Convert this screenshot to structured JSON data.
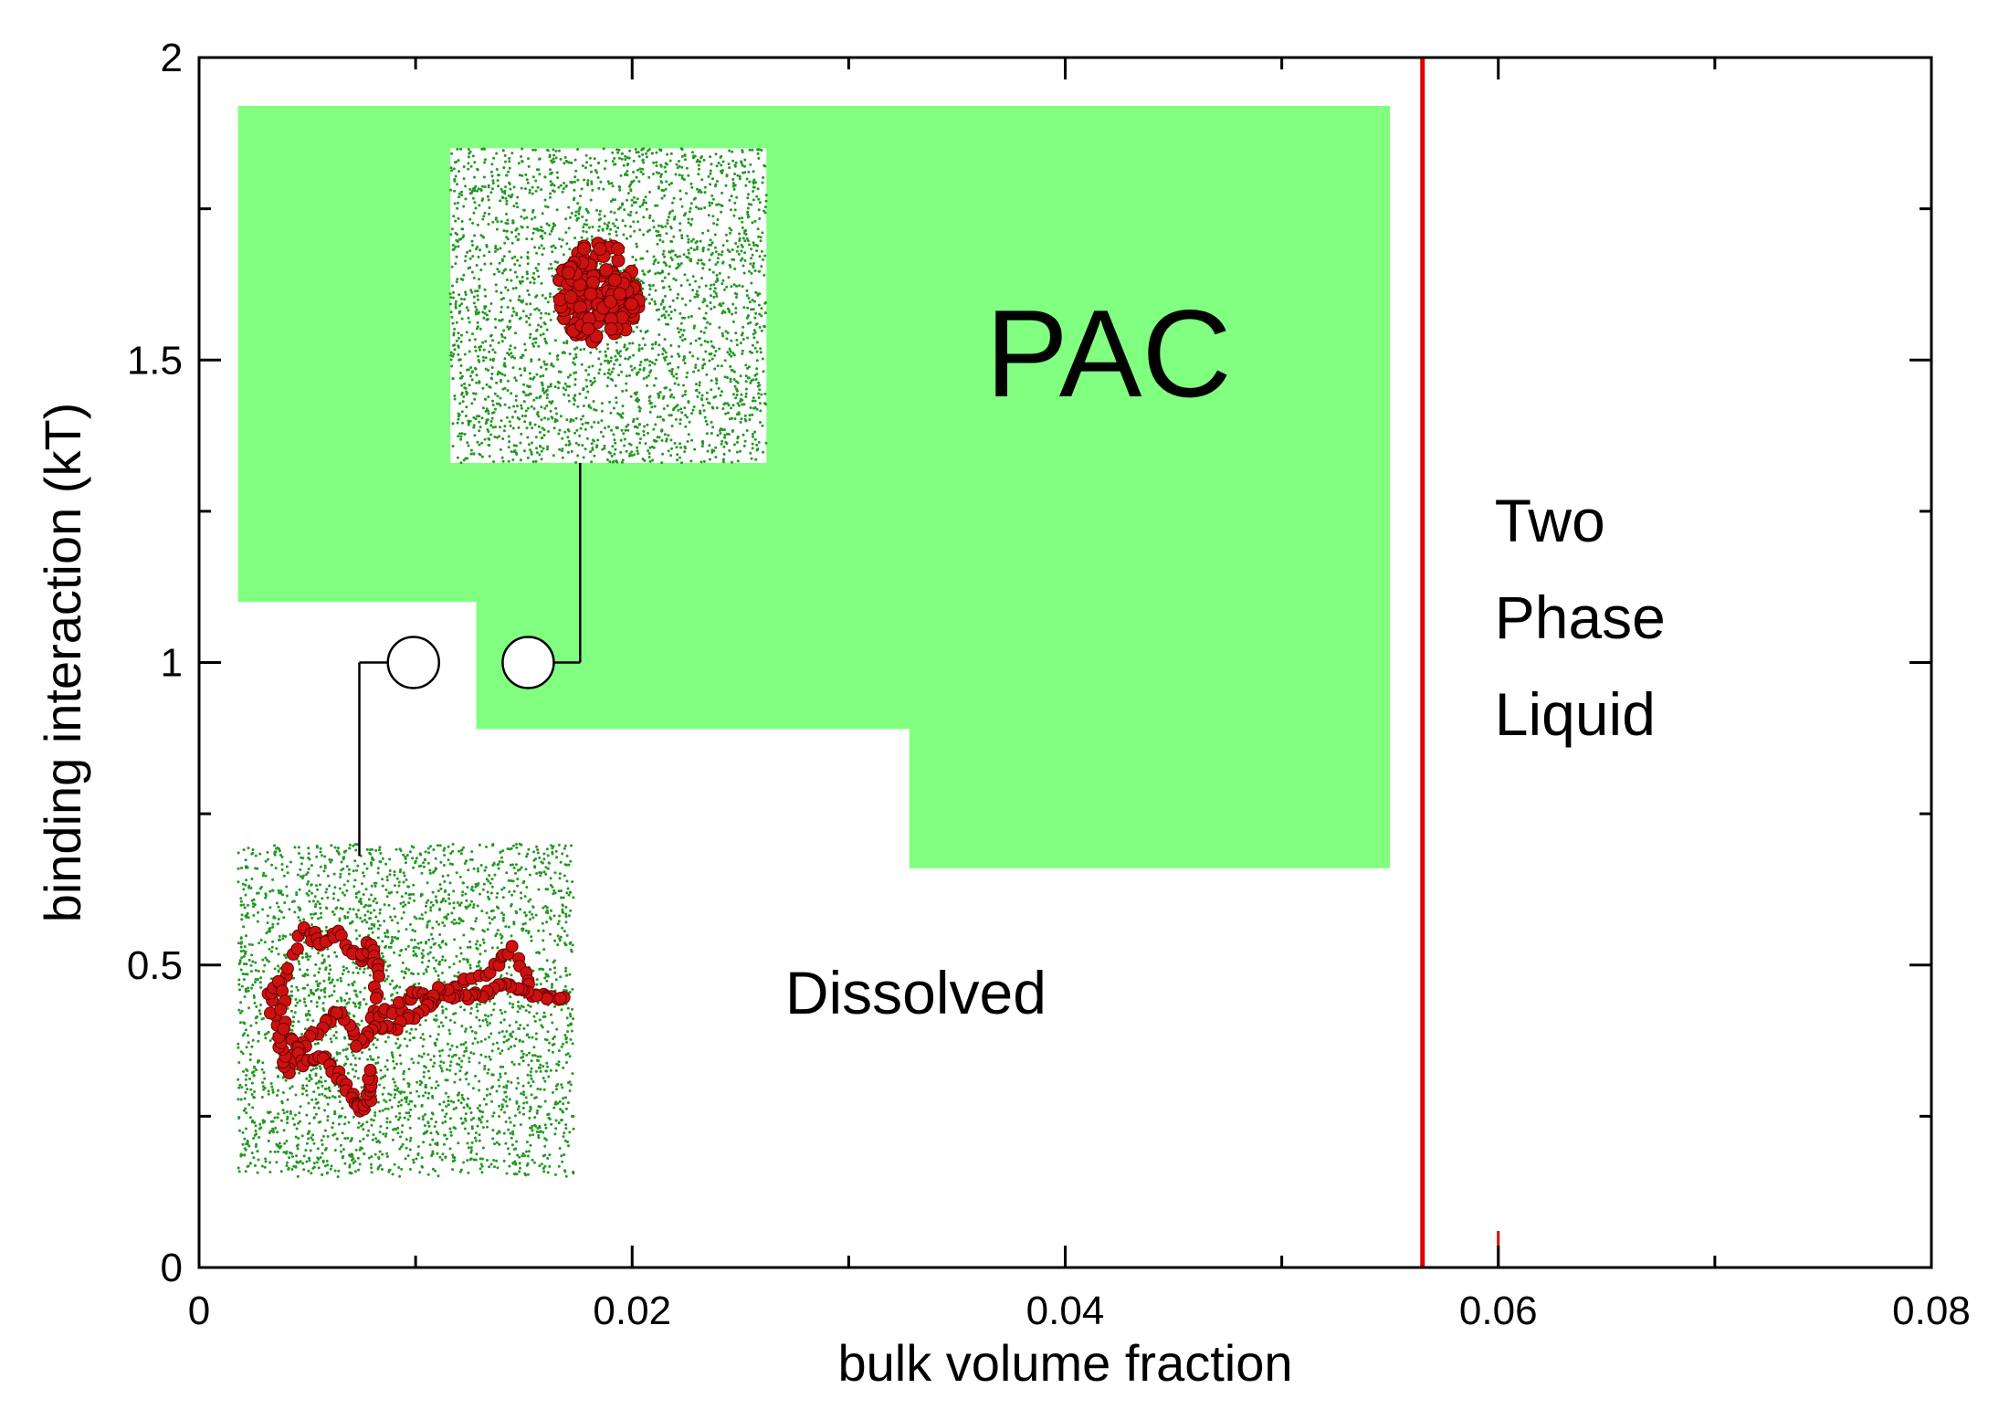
{
  "chart_data": {
    "type": "phase-diagram",
    "xlabel": "bulk volume fraction",
    "ylabel": "binding interaction (kT)",
    "xlim": [
      0,
      0.08
    ],
    "ylim": [
      0,
      2
    ],
    "x_ticks": [
      0,
      0.02,
      0.04,
      0.06,
      0.08
    ],
    "x_tick_labels": [
      "0",
      "0.02",
      "0.04",
      "0.06",
      "0.08"
    ],
    "y_ticks": [
      0,
      0.5,
      1,
      1.5,
      2
    ],
    "y_tick_labels": [
      "0",
      "0.5",
      "1",
      "1.5",
      "2"
    ],
    "x_minor_step": 0.01,
    "y_minor_step": 0.25,
    "colors": {
      "pac_region": "#80ff80",
      "boundary_line": "#dd0000",
      "polymer_bead": "#cc1111",
      "solvent_dot": "#229922",
      "axis": "#000000"
    },
    "pac_region_polygon": [
      [
        0.0018,
        1.92
      ],
      [
        0.055,
        1.92
      ],
      [
        0.055,
        0.66
      ],
      [
        0.0328,
        0.66
      ],
      [
        0.0328,
        0.89
      ],
      [
        0.0128,
        0.89
      ],
      [
        0.0128,
        1.1
      ],
      [
        0.0018,
        1.1
      ]
    ],
    "two_phase_boundary_x": 0.0565,
    "boundary_tick_x": 0.06,
    "points": [
      {
        "x": 0.0099,
        "y": 1.0,
        "marker": "open-circle"
      },
      {
        "x": 0.0152,
        "y": 1.0,
        "marker": "open-circle"
      }
    ],
    "regions": [
      {
        "label": "PAC",
        "x": 0.042,
        "y": 1.44
      },
      {
        "label": "Dissolved",
        "x": 0.0331,
        "y": 0.42
      },
      {
        "label_lines": [
          "Two",
          "Phase",
          "Liquid"
        ],
        "x": 0.06,
        "y_lines": [
          1.2,
          1.04,
          0.88
        ]
      }
    ],
    "insets": [
      {
        "name": "collapsed-coil-snapshot",
        "x_range": [
          0.0116,
          0.0262
        ],
        "y_range": [
          1.33,
          1.85
        ],
        "conformation": "collapsed",
        "connector": [
          [
            0.0176,
            1.0
          ],
          [
            0.0176,
            1.33
          ]
        ]
      },
      {
        "name": "extended-coil-snapshot",
        "x_range": [
          0.0018,
          0.0173
        ],
        "y_range": [
          0.15,
          0.7
        ],
        "conformation": "extended",
        "connector": [
          [
            0.0074,
            1.0
          ],
          [
            0.0074,
            0.68
          ]
        ]
      }
    ]
  }
}
